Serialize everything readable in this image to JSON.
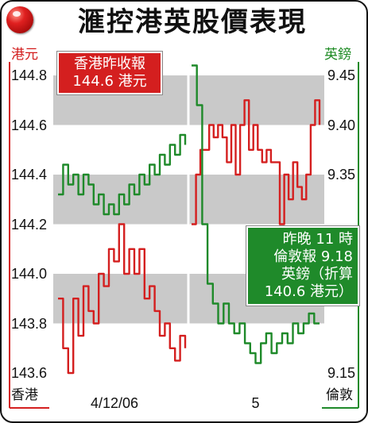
{
  "header": {
    "title": "滙控港英股價表現",
    "left_unit": "港元",
    "right_unit": "英鎊",
    "left_footer": "香港",
    "right_footer": "倫敦"
  },
  "callouts": {
    "hk_close": [
      "香港昨收報",
      "144.6 港元"
    ],
    "london_close": [
      "昨晚 11 時",
      "倫敦報 9.18",
      "英鎊（折算",
      "140.6 港元）"
    ]
  },
  "colors": {
    "hk_series": "#d41f1f",
    "london_series": "#1f8a2a",
    "band": "#c9c9c9",
    "frame": "#111111"
  },
  "icons": {
    "corner": "red-ball-icon"
  },
  "chart_data": {
    "type": "line",
    "title": "滙控港英股價表現",
    "x_categories": [
      "4/12/06",
      "5"
    ],
    "left_axis": {
      "label": "港元",
      "ylim": [
        143.6,
        144.8
      ],
      "ticks": [
        144.8,
        144.6,
        144.4,
        144.2,
        144.0,
        143.8,
        143.6
      ]
    },
    "right_axis": {
      "label": "英鎊",
      "ylim": [
        9.15,
        9.45
      ],
      "ticks": [
        9.45,
        9.4,
        9.35,
        9.15
      ]
    },
    "grid": "alternating horizontal bands",
    "series": [
      {
        "name": "香港",
        "axis": "left",
        "segments": [
          {
            "day": "4/12/06",
            "values": [
              143.9,
              143.7,
              143.6,
              143.9,
              143.75,
              143.95,
              143.85,
              143.8,
              144.0,
              143.95,
              144.1,
              144.05,
              144.2,
              144.0,
              144.1,
              144.0,
              144.1,
              143.9,
              143.95,
              143.85,
              143.75,
              143.8,
              143.7,
              143.65,
              143.75,
              143.7
            ]
          },
          {
            "day": "5",
            "values": [
              144.2,
              144.4,
              144.5,
              144.5,
              144.6,
              144.55,
              144.6,
              144.55,
              144.45,
              144.6,
              144.4,
              144.6,
              144.7,
              144.5,
              144.6,
              144.5,
              144.45,
              144.5,
              144.45,
              144.45,
              144.2,
              144.4,
              144.3,
              144.45,
              144.35,
              144.3,
              144.4,
              144.6,
              144.7,
              144.6
            ]
          }
        ]
      },
      {
        "name": "倫敦",
        "axis": "right",
        "segments": [
          {
            "day": "4/12/06",
            "values": [
              9.33,
              9.36,
              9.34,
              9.35,
              9.33,
              9.35,
              9.34,
              9.32,
              9.33,
              9.31,
              9.32,
              9.31,
              9.33,
              9.32,
              9.34,
              9.33,
              9.35,
              9.34,
              9.36,
              9.35,
              9.37,
              9.36,
              9.38,
              9.37,
              9.39,
              9.38
            ]
          },
          {
            "day": "5",
            "values": [
              9.46,
              9.42,
              9.3,
              9.24,
              9.22,
              9.2,
              9.22,
              9.2,
              9.19,
              9.2,
              9.18,
              9.17,
              9.16,
              9.18,
              9.19,
              9.17,
              9.18,
              9.19,
              9.18,
              9.2,
              9.19,
              9.2,
              9.21,
              9.2,
              9.2
            ]
          }
        ]
      }
    ]
  }
}
